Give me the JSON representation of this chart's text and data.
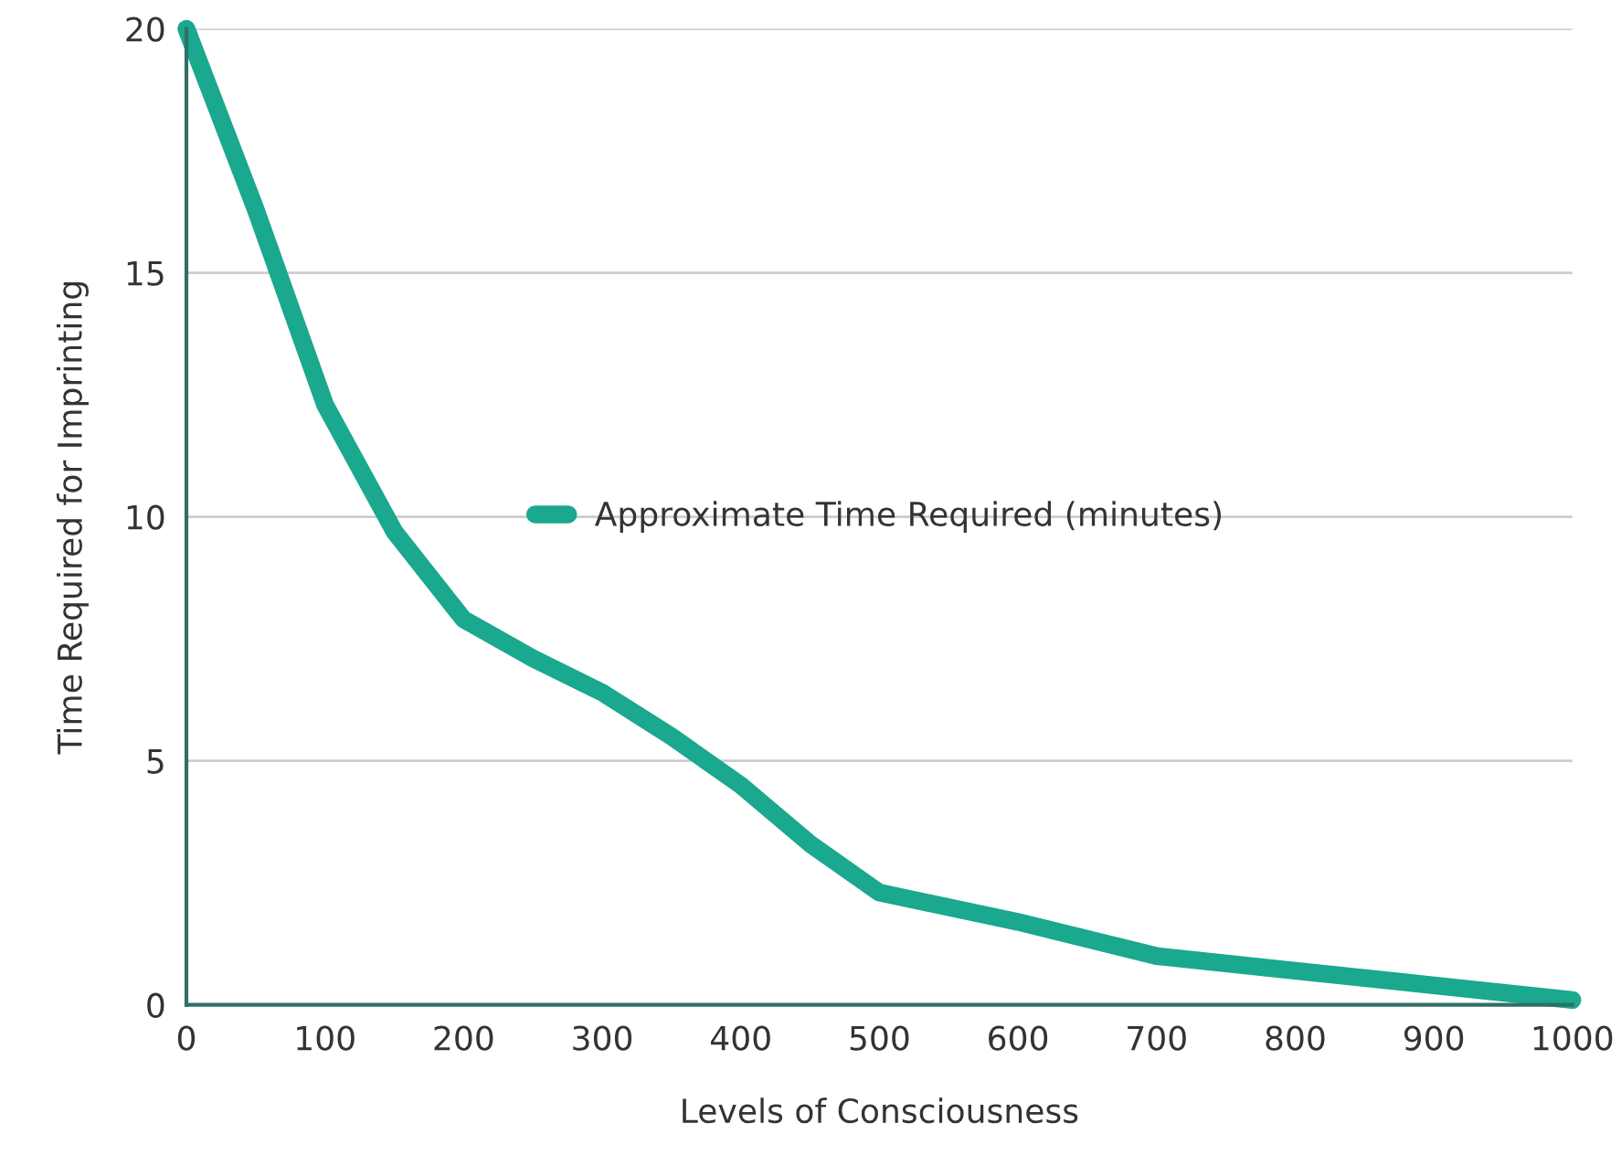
{
  "chart_data": {
    "type": "line",
    "xlabel": "Levels of Consciousness",
    "ylabel": "Time Required for Imprinting",
    "x": [
      0,
      50,
      100,
      150,
      200,
      250,
      300,
      350,
      400,
      450,
      500,
      600,
      700,
      800,
      900,
      1000
    ],
    "series": [
      {
        "name": "Approximate Time Required (minutes)",
        "color": "#1aa88e",
        "values": [
          20,
          16.3,
          12.3,
          9.7,
          7.9,
          7.1,
          6.4,
          5.5,
          4.5,
          3.3,
          2.3,
          1.7,
          1.0,
          0.7,
          0.4,
          0.1
        ]
      }
    ],
    "xlim": [
      0,
      1000
    ],
    "ylim": [
      0,
      20
    ],
    "xticks": [
      0,
      100,
      200,
      300,
      400,
      500,
      600,
      700,
      800,
      900,
      1000
    ],
    "yticks": [
      0,
      5,
      10,
      15,
      20
    ],
    "grid": "y",
    "legend": "center",
    "marker": "none",
    "line_style": "solid"
  }
}
